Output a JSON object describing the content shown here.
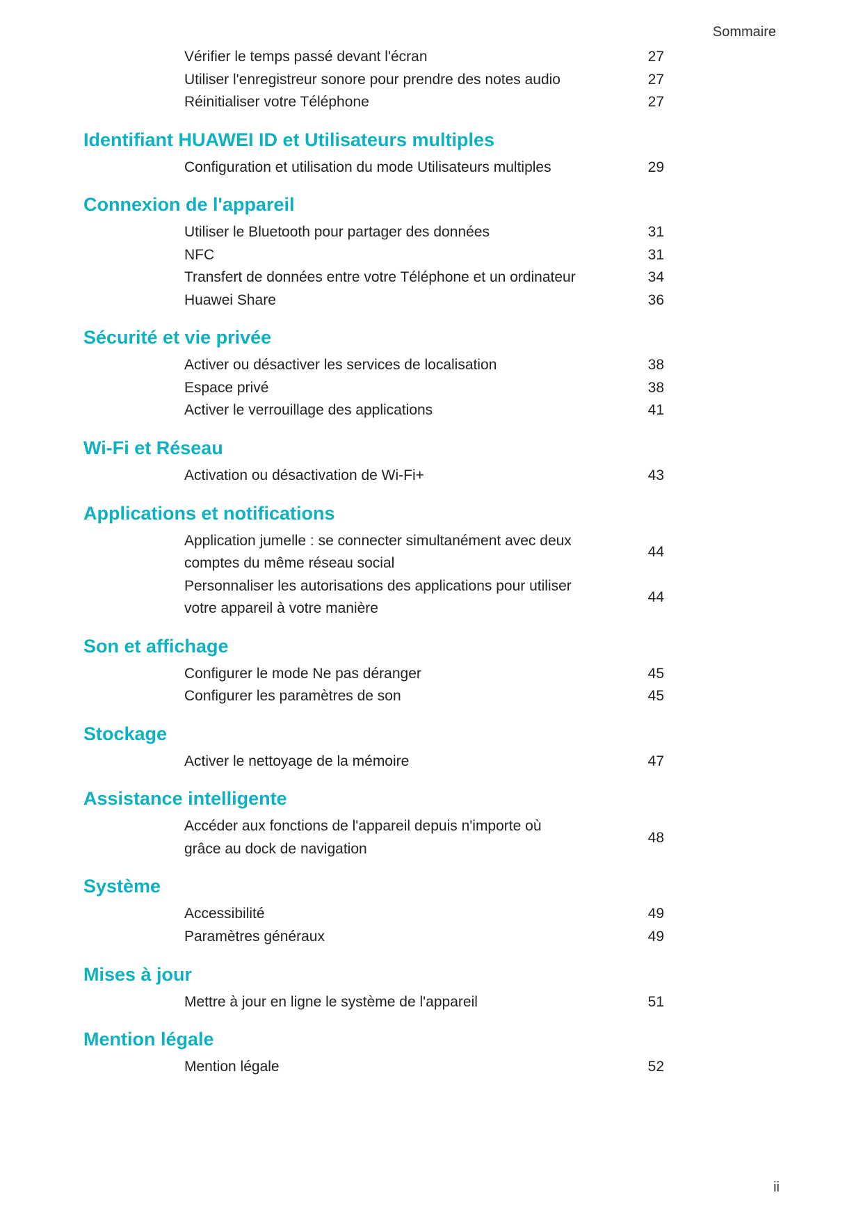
{
  "header": "Sommaire",
  "page_number": "ii",
  "colors": {
    "heading": "#0fb0c0",
    "text": "#222222",
    "background": "#ffffff"
  },
  "pre_items": [
    {
      "label": "Vérifier le temps passé devant l'écran",
      "page": "27"
    },
    {
      "label": "Utiliser l'enregistreur sonore pour prendre des notes audio",
      "page": "27"
    },
    {
      "label": "Réinitialiser votre Téléphone",
      "page": "27"
    }
  ],
  "sections": [
    {
      "title": "Identifiant HUAWEI ID et Utilisateurs multiples",
      "items": [
        {
          "label": "Configuration et utilisation du mode Utilisateurs multiples",
          "page": "29"
        }
      ]
    },
    {
      "title": "Connexion de l'appareil",
      "items": [
        {
          "label": "Utiliser le Bluetooth pour partager des données",
          "page": "31"
        },
        {
          "label": "NFC",
          "page": "31"
        },
        {
          "label": "Transfert de données entre votre Téléphone et un ordinateur",
          "page": "34"
        },
        {
          "label": "Huawei Share",
          "page": "36"
        }
      ]
    },
    {
      "title": "Sécurité et vie privée",
      "items": [
        {
          "label": "Activer ou désactiver les services de localisation",
          "page": "38"
        },
        {
          "label": "Espace privé",
          "page": "38"
        },
        {
          "label": "Activer le verrouillage des applications",
          "page": "41"
        }
      ]
    },
    {
      "title": "Wi-Fi et Réseau",
      "items": [
        {
          "label": "Activation ou désactivation de Wi-Fi+",
          "page": "43"
        }
      ]
    },
    {
      "title": "Applications et notifications",
      "items": [
        {
          "label": "Application jumelle : se connecter simultanément avec deux comptes du même réseau social",
          "page": "44"
        },
        {
          "label": "Personnaliser les autorisations des applications pour utiliser votre appareil à votre manière",
          "page": "44"
        }
      ]
    },
    {
      "title": "Son et affichage",
      "items": [
        {
          "label": "Configurer le mode Ne pas déranger",
          "page": "45"
        },
        {
          "label": "Configurer les paramètres de son",
          "page": "45"
        }
      ]
    },
    {
      "title": "Stockage",
      "items": [
        {
          "label": "Activer le nettoyage de la mémoire",
          "page": "47"
        }
      ]
    },
    {
      "title": "Assistance intelligente",
      "items": [
        {
          "label": "Accéder aux fonctions de l'appareil depuis n'importe où grâce au dock de navigation",
          "page": "48"
        }
      ]
    },
    {
      "title": "Système",
      "items": [
        {
          "label": "Accessibilité",
          "page": "49"
        },
        {
          "label": "Paramètres généraux",
          "page": "49"
        }
      ]
    },
    {
      "title": "Mises à jour",
      "items": [
        {
          "label": "Mettre à jour en ligne le système de l'appareil",
          "page": "51"
        }
      ]
    },
    {
      "title": "Mention légale",
      "items": [
        {
          "label": "Mention légale",
          "page": "52"
        }
      ]
    }
  ]
}
